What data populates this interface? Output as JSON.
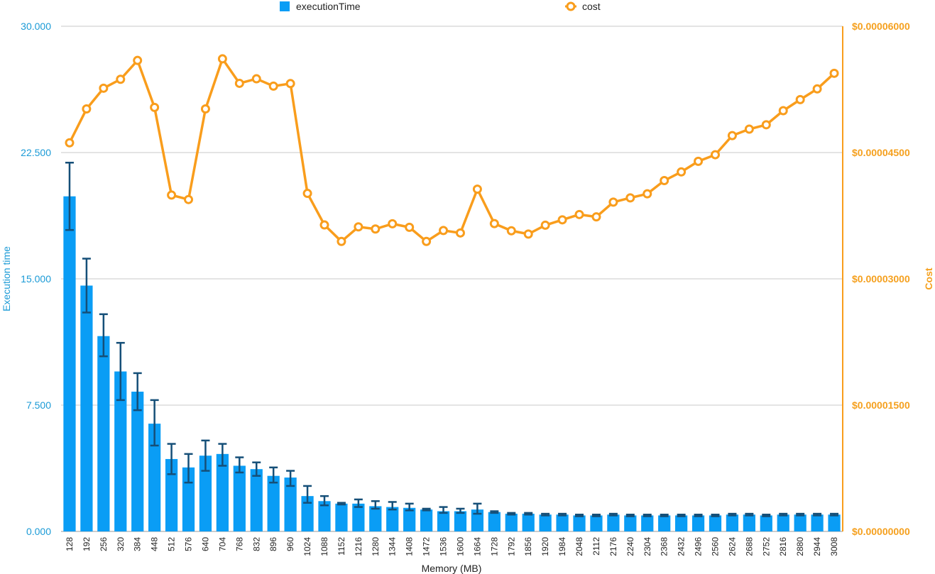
{
  "chart_data": {
    "type": "bar",
    "categories": [
      "128",
      "192",
      "256",
      "320",
      "384",
      "448",
      "512",
      "576",
      "640",
      "704",
      "768",
      "832",
      "896",
      "960",
      "1024",
      "1088",
      "1152",
      "1216",
      "1280",
      "1344",
      "1408",
      "1472",
      "1536",
      "1600",
      "1664",
      "1728",
      "1792",
      "1856",
      "1920",
      "1984",
      "2048",
      "2112",
      "2176",
      "2240",
      "2304",
      "2368",
      "2432",
      "2496",
      "2560",
      "2624",
      "2688",
      "2752",
      "2816",
      "2880",
      "2944",
      "3008"
    ],
    "series": [
      {
        "name": "executionTime",
        "kind": "bar",
        "axis": "left",
        "color": "#0a9df5",
        "values": [
          19.9,
          14.6,
          11.6,
          9.5,
          8.3,
          6.4,
          4.3,
          3.8,
          4.5,
          4.6,
          3.9,
          3.7,
          3.3,
          3.2,
          2.1,
          1.8,
          1.65,
          1.65,
          1.5,
          1.45,
          1.4,
          1.3,
          1.2,
          1.2,
          1.3,
          1.15,
          1.05,
          1.05,
          1.0,
          1.0,
          0.95,
          0.95,
          1.0,
          0.95,
          0.95,
          0.95,
          0.95,
          0.95,
          0.95,
          1.0,
          1.0,
          0.95,
          1.0,
          1.0,
          1.0,
          1.0
        ],
        "error_low": [
          17.9,
          13.0,
          10.4,
          7.8,
          7.2,
          5.1,
          3.4,
          2.9,
          3.6,
          3.9,
          3.5,
          3.3,
          2.9,
          2.7,
          1.7,
          1.55,
          1.6,
          1.45,
          1.35,
          1.3,
          1.25,
          1.25,
          1.1,
          1.1,
          1.05,
          1.1,
          1.0,
          1.0,
          0.95,
          0.95,
          0.9,
          0.9,
          0.95,
          0.9,
          0.9,
          0.9,
          0.9,
          0.9,
          0.9,
          0.95,
          0.95,
          0.9,
          0.95,
          0.95,
          0.95,
          0.95
        ],
        "error_high": [
          21.9,
          16.2,
          12.9,
          11.2,
          9.4,
          7.8,
          5.2,
          4.6,
          5.4,
          5.2,
          4.4,
          4.1,
          3.8,
          3.6,
          2.7,
          2.1,
          1.7,
          1.9,
          1.8,
          1.75,
          1.65,
          1.35,
          1.45,
          1.35,
          1.65,
          1.2,
          1.1,
          1.1,
          1.05,
          1.05,
          1.0,
          1.0,
          1.05,
          1.0,
          1.0,
          1.0,
          1.0,
          1.0,
          1.0,
          1.05,
          1.05,
          1.0,
          1.05,
          1.05,
          1.05,
          1.05
        ]
      },
      {
        "name": "cost",
        "kind": "line",
        "axis": "right",
        "color": "#f99d1c",
        "values": [
          4.616e-05,
          5.018e-05,
          5.264e-05,
          5.37e-05,
          5.594e-05,
          5.036e-05,
          3.995e-05,
          3.942e-05,
          5.018e-05,
          5.613e-05,
          5.322e-05,
          5.376e-05,
          5.289e-05,
          5.319e-05,
          4.015e-05,
          3.64e-05,
          3.444e-05,
          3.617e-05,
          3.592e-05,
          3.654e-05,
          3.612e-05,
          3.444e-05,
          3.574e-05,
          3.545e-05,
          4.065e-05,
          3.656e-05,
          3.571e-05,
          3.532e-05,
          3.637e-05,
          3.701e-05,
          3.764e-05,
          3.736e-05,
          3.911e-05,
          3.962e-05,
          4.01e-05,
          4.167e-05,
          4.27e-05,
          4.396e-05,
          4.474e-05,
          4.701e-05,
          4.778e-05,
          4.83e-05,
          4.997e-05,
          5.129e-05,
          5.256e-05,
          5.441e-05
        ]
      }
    ],
    "xlabel": "Memory (MB)",
    "ylabel": "Execution time",
    "ylabel_right": "Cost",
    "ylim": [
      0,
      30
    ],
    "ylim_right": [
      0,
      6e-05
    ],
    "yticks": [
      "0.000",
      "7.500",
      "15.000",
      "22.500",
      "30.000"
    ],
    "yticks_right": [
      "$0.00000000",
      "$0.00001500",
      "$0.00003000",
      "$0.00004500",
      "$0.00006000"
    ],
    "grid": true,
    "legend_position": "top"
  },
  "colors": {
    "bar": "#0a9df5",
    "error": "#154f78",
    "line": "#f99d1c",
    "left_axis_text": "#1a9ad6",
    "right_axis_text": "#f5a01e",
    "grid": "#c8c8c8"
  }
}
